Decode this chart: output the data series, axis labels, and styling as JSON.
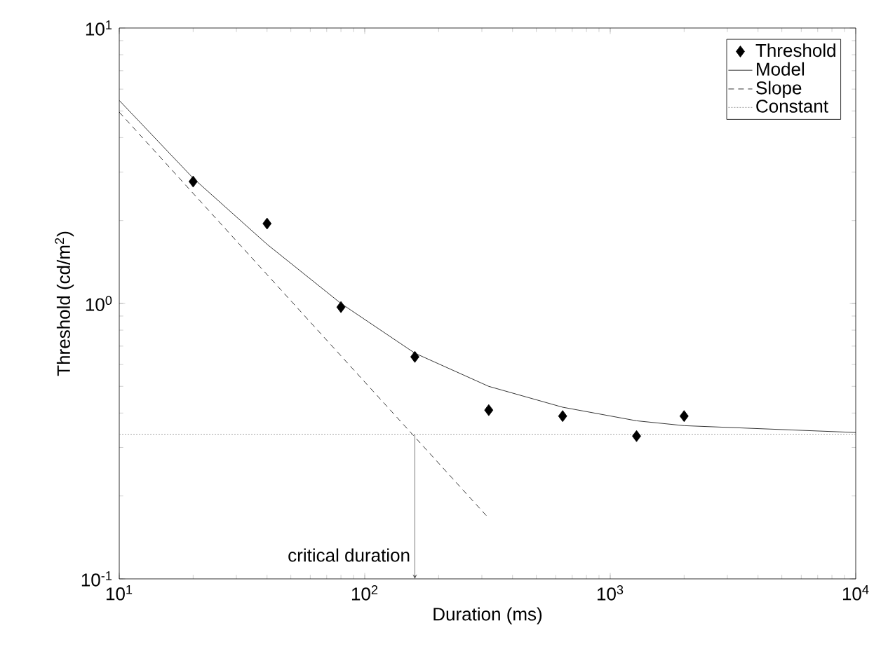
{
  "chart_data": {
    "type": "line",
    "xlabel": "Duration (ms)",
    "ylabel": "Threshold (cd/m$^{2}$)",
    "log": "xy",
    "grid": false,
    "legend": "top right",
    "xlim": [
      10,
      10000
    ],
    "ylim": [
      0.1,
      10
    ],
    "xticks": [
      {
        "value": 10,
        "label": "10$^{1}$"
      },
      {
        "value": 100,
        "label": "10$^{2}$"
      },
      {
        "value": 1000,
        "label": "10$^{3}$"
      },
      {
        "value": 10000,
        "label": "10$^{4}$"
      }
    ],
    "yticks": [
      {
        "value": 0.1,
        "label": "10$^{-1}$"
      },
      {
        "value": 1,
        "label": "10$^{0}$"
      },
      {
        "value": 10,
        "label": "10$^{1}$"
      }
    ],
    "series": [
      {
        "name": "Threshold",
        "type": "scatter",
        "marker": "diamond",
        "color": "#000000",
        "x": [
          20,
          40,
          80,
          160,
          320,
          640,
          1280,
          2000
        ],
        "values": [
          2.77,
          1.95,
          0.97,
          0.64,
          0.41,
          0.39,
          0.33,
          0.39
        ]
      },
      {
        "name": "Model",
        "marker": "none",
        "line_style": "solid",
        "color": "#000000",
        "x": [
          10,
          20,
          40,
          80,
          160,
          320,
          640,
          1280,
          2000,
          10000
        ],
        "values": [
          5.46,
          2.85,
          1.64,
          1.0,
          0.66,
          0.5,
          0.42,
          0.375,
          0.36,
          0.34
        ]
      },
      {
        "name": "Slope",
        "marker": "none",
        "line_style": "dashed",
        "color": "#000000",
        "x": [
          10,
          320
        ],
        "values": [
          4.95,
          0.166
        ]
      },
      {
        "name": "Constant",
        "marker": "none",
        "line_style": "dotted",
        "color": "#808080",
        "x": [
          10,
          10000
        ],
        "values": [
          0.335,
          0.335
        ]
      }
    ],
    "annotations": [
      {
        "text": "critical duration",
        "x": 160,
        "y": 0.335
      }
    ]
  }
}
